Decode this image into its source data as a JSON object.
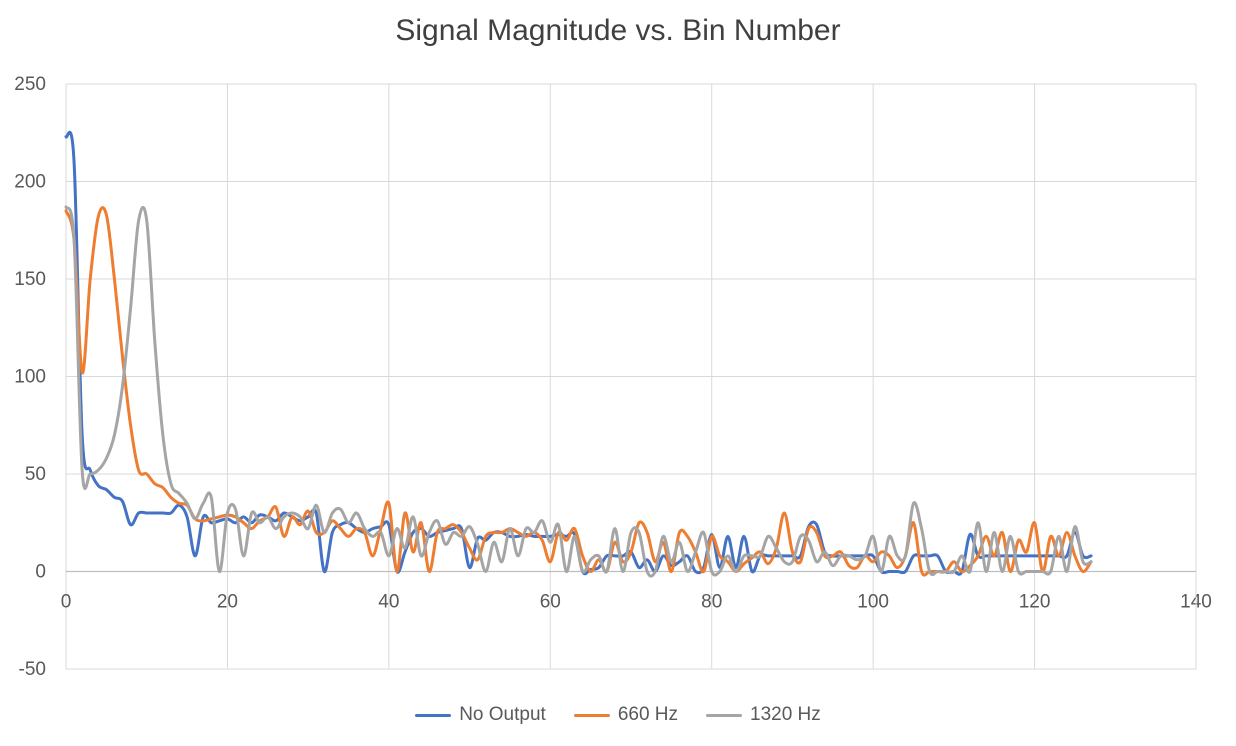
{
  "chart_data": {
    "type": "line",
    "title": "Signal Magnitude vs. Bin Number",
    "xlabel": "",
    "ylabel": "",
    "xlim": [
      0,
      140
    ],
    "ylim": [
      -50,
      250
    ],
    "x_ticks": [
      0,
      20,
      40,
      60,
      80,
      100,
      120,
      140
    ],
    "y_ticks": [
      -50,
      0,
      50,
      100,
      150,
      200,
      250
    ],
    "grid": true,
    "legend_position": "bottom",
    "x": [
      0,
      1,
      2,
      3,
      4,
      5,
      6,
      7,
      8,
      9,
      10,
      11,
      12,
      13,
      14,
      15,
      16,
      17,
      18,
      19,
      20,
      21,
      22,
      23,
      24,
      25,
      26,
      27,
      28,
      29,
      30,
      31,
      32,
      33,
      34,
      35,
      36,
      37,
      38,
      39,
      40,
      41,
      42,
      43,
      44,
      45,
      46,
      47,
      48,
      49,
      50,
      51,
      52,
      53,
      54,
      55,
      56,
      57,
      58,
      59,
      60,
      61,
      62,
      63,
      64,
      65,
      66,
      67,
      68,
      69,
      70,
      71,
      72,
      73,
      74,
      75,
      76,
      77,
      78,
      79,
      80,
      81,
      82,
      83,
      84,
      85,
      86,
      87,
      88,
      89,
      90,
      91,
      92,
      93,
      94,
      95,
      96,
      97,
      98,
      99,
      100,
      101,
      102,
      103,
      104,
      105,
      106,
      107,
      108,
      109,
      110,
      111,
      112,
      113,
      114,
      115,
      116,
      117,
      118,
      119,
      120,
      121,
      122,
      123,
      124,
      125,
      126,
      127
    ],
    "series": [
      {
        "name": "No Output",
        "color": "#4472C4",
        "values": [
          223,
          210,
          70,
          52,
          44,
          42,
          38,
          36,
          24,
          30,
          30,
          30,
          30,
          30,
          34,
          28,
          8,
          28,
          25,
          26,
          27,
          25,
          28,
          25,
          29,
          28,
          26,
          30,
          28,
          26,
          28,
          30,
          0,
          20,
          24,
          25,
          22,
          20,
          22,
          23,
          24,
          0,
          10,
          20,
          22,
          18,
          20,
          21,
          22,
          22,
          2,
          17,
          16,
          20,
          20,
          18,
          18,
          19,
          18,
          18,
          18,
          19,
          18,
          19,
          0,
          1,
          2,
          8,
          8,
          8,
          10,
          2,
          6,
          0,
          8,
          3,
          5,
          8,
          0,
          2,
          19,
          2,
          18,
          2,
          18,
          0,
          8,
          8,
          8,
          8,
          8,
          8,
          23,
          24,
          10,
          8,
          8,
          8,
          8,
          8,
          8,
          0,
          0,
          0,
          0,
          8,
          8,
          8,
          8,
          0,
          0,
          0,
          19,
          8,
          8,
          8,
          8,
          8,
          8,
          8,
          8,
          8,
          8,
          8,
          8,
          20,
          8,
          8
        ]
      },
      {
        "name": "660 Hz",
        "color": "#ED7D31",
        "values": [
          185,
          170,
          102,
          150,
          182,
          183,
          150,
          110,
          75,
          52,
          50,
          45,
          43,
          38,
          35,
          34,
          27,
          26,
          27,
          28,
          29,
          28,
          25,
          22,
          26,
          28,
          33,
          18,
          28,
          24,
          31,
          20,
          20,
          26,
          22,
          18,
          22,
          20,
          8,
          22,
          35,
          0,
          30,
          10,
          25,
          0,
          20,
          22,
          24,
          20,
          12,
          6,
          18,
          20,
          20,
          22,
          20,
          18,
          20,
          16,
          5,
          20,
          16,
          22,
          8,
          0,
          6,
          0,
          15,
          5,
          10,
          25,
          20,
          5,
          15,
          0,
          20,
          18,
          10,
          0,
          18,
          8,
          5,
          0,
          4,
          7,
          10,
          4,
          12,
          30,
          10,
          5,
          22,
          20,
          8,
          8,
          10,
          3,
          2,
          8,
          5,
          10,
          8,
          2,
          8,
          25,
          0,
          0,
          0,
          0,
          5,
          0,
          3,
          8,
          18,
          8,
          20,
          0,
          16,
          10,
          25,
          0,
          18,
          8,
          20,
          8,
          0,
          5
        ]
      },
      {
        "name": "1320 Hz",
        "color": "#A5A5A5",
        "values": [
          187,
          170,
          52,
          50,
          52,
          58,
          70,
          95,
          135,
          180,
          180,
          118,
          70,
          45,
          40,
          35,
          27,
          35,
          38,
          0,
          30,
          32,
          8,
          30,
          25,
          28,
          22,
          28,
          30,
          28,
          22,
          34,
          20,
          30,
          32,
          25,
          30,
          22,
          18,
          20,
          8,
          22,
          12,
          28,
          8,
          20,
          26,
          14,
          20,
          18,
          23,
          14,
          0,
          15,
          5,
          22,
          8,
          22,
          20,
          26,
          15,
          24,
          0,
          18,
          0,
          6,
          8,
          0,
          22,
          0,
          20,
          20,
          0,
          0,
          18,
          5,
          15,
          0,
          10,
          20,
          0,
          0,
          8,
          0,
          8,
          8,
          8,
          18,
          12,
          5,
          5,
          18,
          16,
          5,
          10,
          3,
          8,
          8,
          6,
          8,
          18,
          0,
          18,
          8,
          8,
          35,
          22,
          0,
          0,
          0,
          0,
          8,
          0,
          25,
          0,
          20,
          0,
          18,
          0,
          0,
          0,
          0,
          0,
          18,
          0,
          23,
          5,
          5
        ]
      }
    ]
  }
}
